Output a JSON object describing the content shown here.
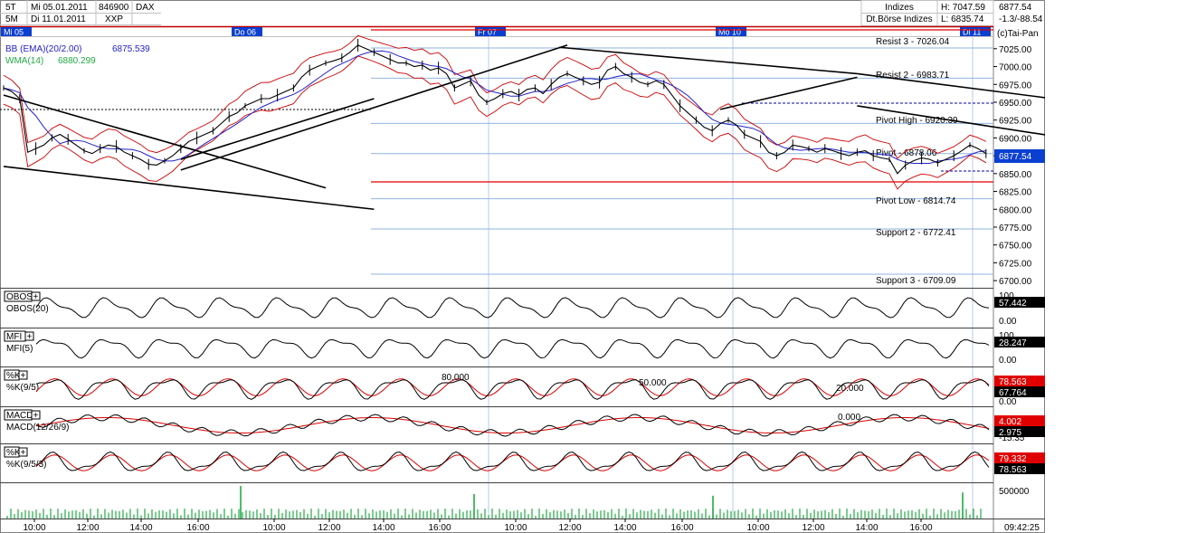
{
  "header": {
    "rows": [
      {
        "period": "5T",
        "date": "Mi 05.01.2011",
        "wkn": "846900",
        "name": "DAX"
      },
      {
        "period": "5M",
        "date": "Di 11.01.2011",
        "wkn": "",
        "name": "XXP"
      }
    ],
    "category": "Indizes",
    "exchange": "Dt.Börse Indizes",
    "high_label": "H: 7047.59",
    "low_label": "L: 6835.74",
    "last": "6877.54",
    "change": "-1.3/-88.54",
    "copyright": "(c)Tai-Pan"
  },
  "day_labels": [
    {
      "label": "Mi 05",
      "x": 0
    },
    {
      "label": "Do 06",
      "x": 1
    },
    {
      "label": "Fr 07",
      "x": 2
    },
    {
      "label": "Mo 10",
      "x": 3
    },
    {
      "label": "Di 11",
      "x": 4
    }
  ],
  "indicators": {
    "bb": {
      "label": "BB (EMA)(20/2.00)",
      "value": "6875.539",
      "color": "#2222cc"
    },
    "wma": {
      "label": "WMA(14)",
      "value": "6880.299",
      "color": "#22aa44"
    }
  },
  "levels": [
    {
      "name": "Resist 3 - 7026.04",
      "value": 7026.04
    },
    {
      "name": "Resist 2 - 6983.71",
      "value": 6983.71
    },
    {
      "name": "Pivot High - 6920.39",
      "value": 6920.39
    },
    {
      "name": "Pivot - 6878.06",
      "value": 6878.06
    },
    {
      "name": "Pivot Low - 6814.74",
      "value": 6814.74
    },
    {
      "name": "Support 2 - 6772.41",
      "value": 6772.41
    },
    {
      "name": "Support 3 - 6709.09",
      "value": 6709.09
    }
  ],
  "panels": [
    {
      "title": "OBOS",
      "sub": "OBOS(20)",
      "scale": [
        "100",
        "0.00"
      ],
      "values": [
        "57.442"
      ]
    },
    {
      "title": "MFI",
      "sub": "MFI(5)",
      "scale": [
        "100.",
        "0.00"
      ],
      "values": [
        "28.247"
      ]
    },
    {
      "title": "%K",
      "sub": "%K(9/5)",
      "scale": [
        "",
        "0.00"
      ],
      "values": [
        "78.563",
        "67.764"
      ],
      "marks": [
        "80.000",
        "50.000",
        "20.000"
      ]
    },
    {
      "title": "MACD",
      "sub": "MACD(12/26/9)",
      "scale": [
        "",
        "-15.35"
      ],
      "values": [
        "4.002",
        "2.975"
      ],
      "marks": [
        "0.000"
      ]
    },
    {
      "title": "%K",
      "sub": "%K(9/5/3)",
      "scale": [
        "",
        ""
      ],
      "values": [
        "79.332",
        "78.563"
      ]
    }
  ],
  "volume_axis": "500000",
  "time_labels": [
    "10:00",
    "12:00",
    "14:00",
    "16:00",
    "10:00",
    "12:00",
    "14:00",
    "16:00",
    "10:00",
    "12:00",
    "14:00",
    "16:00",
    "10:00",
    "12:00",
    "14:00",
    "16:00",
    "09:42:25"
  ],
  "chart_data": {
    "type": "line",
    "title": "DAX",
    "y_ticks": [
      7025,
      7000,
      6975,
      6950,
      6925,
      6900,
      6875,
      6850,
      6825,
      6800,
      6775,
      6750,
      6725,
      6700
    ],
    "ylim": [
      6690,
      7040
    ],
    "price": [
      [
        0,
        6970
      ],
      [
        1,
        6965
      ],
      [
        2,
        6955
      ],
      [
        3,
        6880
      ],
      [
        4,
        6885
      ],
      [
        5,
        6890
      ],
      [
        6,
        6900
      ],
      [
        7,
        6905
      ],
      [
        8,
        6898
      ],
      [
        9,
        6890
      ],
      [
        10,
        6882
      ],
      [
        11,
        6878
      ],
      [
        12,
        6885
      ],
      [
        13,
        6890
      ],
      [
        14,
        6888
      ],
      [
        15,
        6880
      ],
      [
        16,
        6875
      ],
      [
        17,
        6870
      ],
      [
        18,
        6863
      ],
      [
        19,
        6862
      ],
      [
        20,
        6868
      ],
      [
        21,
        6875
      ],
      [
        22,
        6885
      ],
      [
        23,
        6895
      ],
      [
        24,
        6900
      ],
      [
        25,
        6905
      ],
      [
        26,
        6910
      ],
      [
        27,
        6920
      ],
      [
        28,
        6930
      ],
      [
        29,
        6935
      ],
      [
        30,
        6945
      ],
      [
        31,
        6950
      ],
      [
        32,
        6955
      ],
      [
        33,
        6955
      ],
      [
        34,
        6960
      ],
      [
        35,
        6965
      ],
      [
        36,
        6970
      ],
      [
        37,
        6985
      ],
      [
        38,
        6995
      ],
      [
        39,
        7000
      ],
      [
        40,
        7005
      ],
      [
        41,
        7008
      ],
      [
        42,
        7012
      ],
      [
        43,
        7020
      ],
      [
        44,
        7030
      ],
      [
        45,
        7025
      ],
      [
        46,
        7020
      ],
      [
        47,
        7015
      ],
      [
        48,
        7010
      ],
      [
        49,
        7005
      ],
      [
        50,
        7005
      ],
      [
        51,
        7000
      ],
      [
        52,
        7002
      ],
      [
        53,
        6995
      ],
      [
        54,
        6998
      ],
      [
        55,
        6990
      ],
      [
        56,
        6970
      ],
      [
        57,
        6975
      ],
      [
        58,
        6980
      ],
      [
        59,
        6960
      ],
      [
        60,
        6950
      ],
      [
        61,
        6955
      ],
      [
        62,
        6962
      ],
      [
        63,
        6965
      ],
      [
        64,
        6960
      ],
      [
        65,
        6968
      ],
      [
        66,
        6970
      ],
      [
        67,
        6962
      ],
      [
        68,
        6975
      ],
      [
        69,
        6985
      ],
      [
        70,
        6990
      ],
      [
        71,
        6985
      ],
      [
        72,
        6980
      ],
      [
        73,
        6975
      ],
      [
        74,
        6978
      ],
      [
        75,
        6995
      ],
      [
        76,
        7000
      ],
      [
        77,
        6990
      ],
      [
        78,
        6985
      ],
      [
        79,
        6978
      ],
      [
        80,
        6975
      ],
      [
        81,
        6980
      ],
      [
        82,
        6975
      ],
      [
        83,
        6960
      ],
      [
        84,
        6945
      ],
      [
        85,
        6935
      ],
      [
        86,
        6925
      ],
      [
        87,
        6915
      ],
      [
        88,
        6910
      ],
      [
        89,
        6920
      ],
      [
        90,
        6925
      ],
      [
        91,
        6918
      ],
      [
        92,
        6905
      ],
      [
        93,
        6900
      ],
      [
        94,
        6895
      ],
      [
        95,
        6880
      ],
      [
        96,
        6875
      ],
      [
        97,
        6880
      ],
      [
        98,
        6890
      ],
      [
        99,
        6888
      ],
      [
        100,
        6885
      ],
      [
        101,
        6880
      ],
      [
        102,
        6885
      ],
      [
        103,
        6882
      ],
      [
        104,
        6878
      ],
      [
        105,
        6875
      ],
      [
        106,
        6880
      ],
      [
        107,
        6882
      ],
      [
        108,
        6875
      ],
      [
        109,
        6872
      ],
      [
        110,
        6870
      ],
      [
        111,
        6850
      ],
      [
        112,
        6862
      ],
      [
        113,
        6868
      ],
      [
        114,
        6872
      ],
      [
        115,
        6870
      ],
      [
        116,
        6865
      ],
      [
        117,
        6870
      ],
      [
        118,
        6875
      ],
      [
        119,
        6882
      ],
      [
        120,
        6890
      ],
      [
        121,
        6885
      ],
      [
        122,
        6878
      ]
    ],
    "trendlines": [
      [
        [
          0,
          6960
        ],
        [
          40,
          6830
        ]
      ],
      [
        [
          0,
          6860
        ],
        [
          46,
          6800
        ]
      ],
      [
        [
          22,
          6855
        ],
        [
          70,
          7030
        ]
      ],
      [
        [
          22,
          6870
        ],
        [
          46,
          6955
        ]
      ],
      [
        [
          69,
          7027
        ],
        [
          106,
          6990
        ]
      ],
      [
        [
          89,
          6940
        ],
        [
          106,
          6985
        ]
      ],
      [
        [
          106,
          6990
        ],
        [
          172,
          6895
        ]
      ],
      [
        [
          106,
          6945
        ],
        [
          172,
          6830
        ]
      ]
    ],
    "volume_spikes": [
      [
        43,
        1.0
      ],
      [
        86,
        0.75
      ],
      [
        130,
        0.7
      ],
      [
        176,
        0.8
      ]
    ]
  }
}
